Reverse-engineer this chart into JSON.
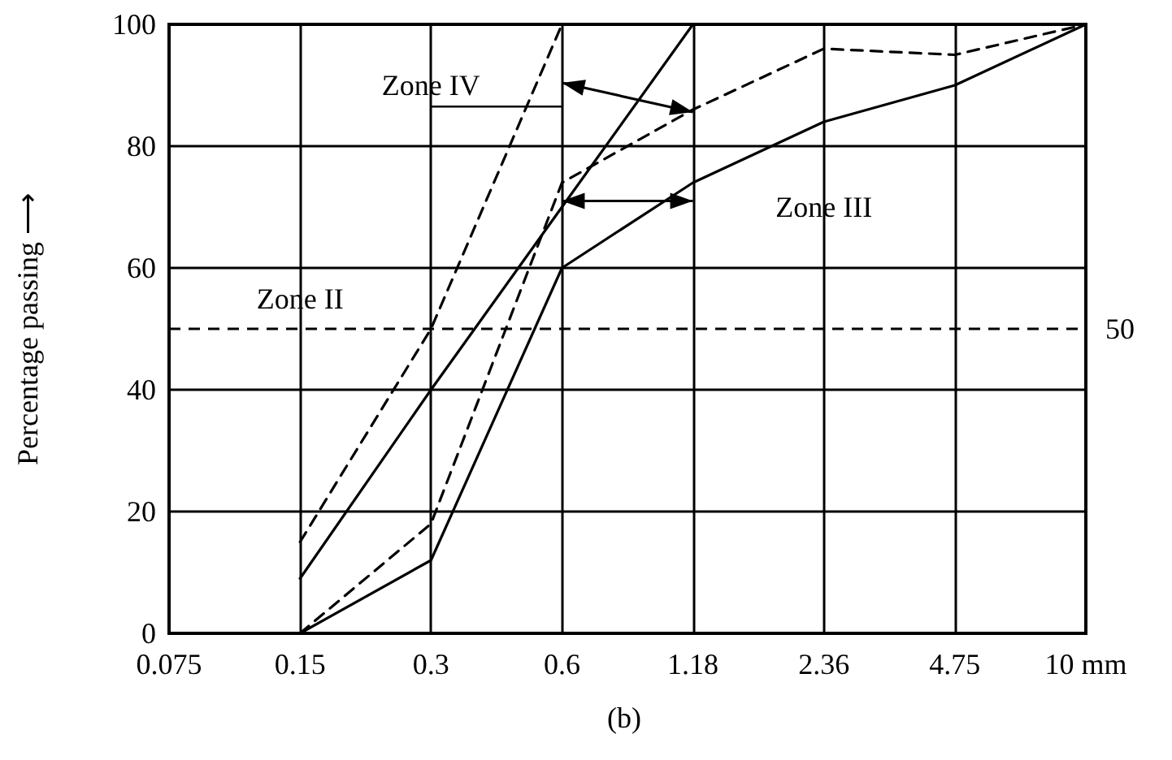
{
  "chart_data": {
    "type": "line",
    "ylabel": "Percentage passing ⟶",
    "categories": [
      "0.075",
      "0.15",
      "0.3",
      "0.6",
      "1.18",
      "2.36",
      "4.75",
      "10 mm"
    ],
    "series": [
      {
        "color": "#000000",
        "line_style": "dashed",
        "values": [
          null,
          15,
          50,
          100,
          null,
          null,
          null,
          null
        ]
      },
      {
        "color": "#000000",
        "line_style": "solid",
        "values": [
          null,
          9,
          40,
          70,
          100,
          null,
          null,
          null
        ]
      },
      {
        "color": "#000000",
        "line_style": "dashed",
        "values": [
          null,
          0,
          18,
          74,
          86,
          96,
          95,
          100
        ]
      },
      {
        "color": "#000000",
        "line_style": "solid",
        "values": [
          null,
          0,
          12,
          60,
          74,
          84,
          90,
          100
        ]
      }
    ],
    "ylim": [
      0,
      100
    ],
    "yticks": [
      0,
      20,
      40,
      60,
      80,
      100
    ],
    "grid": true,
    "marker": "none",
    "ref_lines": [
      {
        "axis": "y",
        "value": 50,
        "label": "50",
        "line_style": "dashed",
        "color": "#000000"
      }
    ],
    "annotations": [
      "Zone IV",
      "Zone III",
      "Zone II",
      "(b)"
    ]
  }
}
